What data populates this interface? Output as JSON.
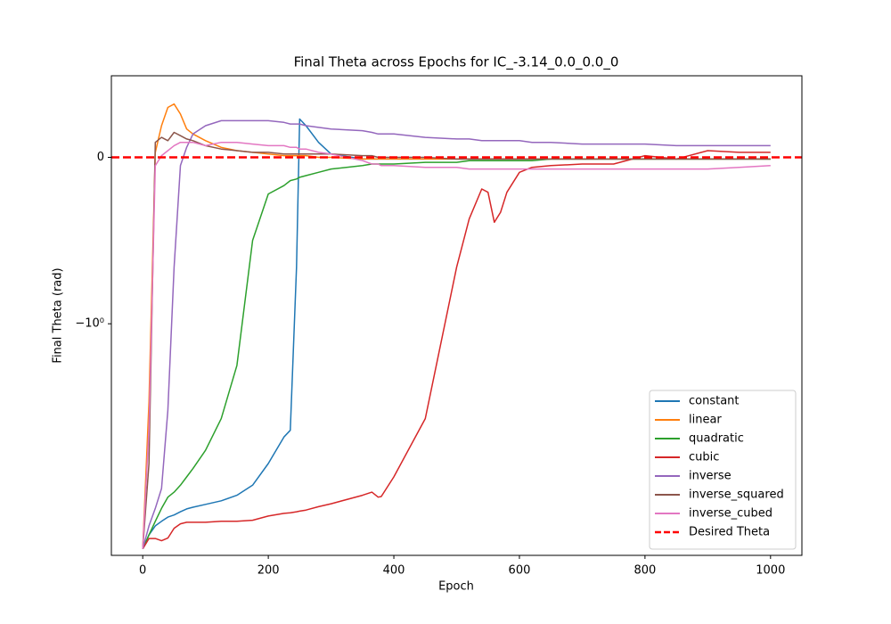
{
  "chart_data": {
    "type": "line",
    "title": "Final Theta across Epochs for IC_-3.14_0.0_0.0_0",
    "x_label": "Epoch",
    "y_label": "Final Theta (rad)",
    "yscale": "symlog",
    "linthresh": 2,
    "xlim": [
      -49.95,
      1049.95
    ],
    "ylim": [
      -3.3,
      0.49
    ],
    "xticks": [
      0,
      200,
      400,
      600,
      800,
      1000
    ],
    "yticks": [
      0,
      {
        "value": -1,
        "label": "−10⁰"
      }
    ],
    "legend": "lower right",
    "x": [
      0,
      10,
      20,
      30,
      40,
      50,
      60,
      70,
      80,
      100,
      125,
      150,
      175,
      200,
      225,
      235,
      245,
      250,
      260,
      280,
      300,
      350,
      365,
      375,
      380,
      400,
      450,
      500,
      520,
      540,
      550,
      560,
      570,
      580,
      600,
      620,
      650,
      700,
      750,
      800,
      850,
      900,
      950,
      1000
    ],
    "series": [
      {
        "name": "constant",
        "color": "#1f77b4",
        "values": [
          -3.14,
          -2.82,
          -2.63,
          -2.54,
          -2.46,
          -2.42,
          -2.36,
          -2.31,
          -2.28,
          -2.23,
          -2.17,
          -2.08,
          -1.97,
          -1.84,
          -1.68,
          -1.64,
          -0.66,
          0.23,
          0.19,
          0.09,
          0.02,
          -0.01,
          -0.01,
          -0.01,
          -0.01,
          -0.01,
          -0.01,
          -0.01,
          -0.01,
          -0.01,
          -0.01,
          -0.01,
          -0.01,
          -0.01,
          -0.01,
          -0.01,
          -0.01,
          -0.01,
          -0.01,
          -0.01,
          -0.01,
          -0.01,
          -0.01,
          -0.01
        ]
      },
      {
        "name": "linear",
        "color": "#ff7f0e",
        "values": [
          -3.14,
          -1.47,
          0.03,
          0.19,
          0.3,
          0.32,
          0.26,
          0.17,
          0.14,
          0.1,
          0.06,
          0.04,
          0.03,
          0.02,
          0.01,
          0.01,
          0.01,
          0.01,
          0.01,
          0.0,
          0.0,
          -0.01,
          -0.01,
          -0.01,
          -0.01,
          -0.01,
          -0.01,
          -0.01,
          -0.01,
          -0.01,
          -0.01,
          -0.01,
          -0.01,
          -0.01,
          -0.01,
          -0.01,
          -0.01,
          -0.01,
          -0.01,
          -0.01,
          -0.01,
          -0.01,
          -0.01,
          -0.01
        ]
      },
      {
        "name": "quadratic",
        "color": "#2ca02c",
        "values": [
          -3.14,
          -2.82,
          -2.54,
          -2.3,
          -2.11,
          -2.03,
          -1.97,
          -1.92,
          -1.87,
          -1.76,
          -1.57,
          -1.25,
          -0.5,
          -0.22,
          -0.17,
          -0.14,
          -0.13,
          -0.12,
          -0.11,
          -0.09,
          -0.07,
          -0.05,
          -0.04,
          -0.04,
          -0.04,
          -0.04,
          -0.03,
          -0.03,
          -0.02,
          -0.02,
          -0.02,
          -0.02,
          -0.02,
          -0.02,
          -0.02,
          -0.02,
          -0.01,
          -0.01,
          -0.01,
          -0.01,
          -0.01,
          -0.01,
          -0.01,
          -0.01
        ]
      },
      {
        "name": "cubic",
        "color": "#d62728",
        "values": [
          -3.14,
          -2.9,
          -2.9,
          -2.95,
          -2.89,
          -2.68,
          -2.59,
          -2.56,
          -2.56,
          -2.56,
          -2.54,
          -2.54,
          -2.52,
          -2.44,
          -2.39,
          -2.38,
          -2.36,
          -2.35,
          -2.33,
          -2.27,
          -2.22,
          -2.08,
          -2.03,
          -2.11,
          -2.1,
          -1.92,
          -1.57,
          -0.66,
          -0.37,
          -0.19,
          -0.21,
          -0.39,
          -0.33,
          -0.21,
          -0.09,
          -0.06,
          -0.05,
          -0.04,
          -0.04,
          0.01,
          -0.01,
          0.04,
          0.03,
          0.03
        ]
      },
      {
        "name": "inverse",
        "color": "#9467bd",
        "values": [
          -3.14,
          -2.63,
          -2.3,
          -1.99,
          -1.52,
          -0.66,
          -0.05,
          0.06,
          0.14,
          0.19,
          0.22,
          0.22,
          0.22,
          0.22,
          0.21,
          0.2,
          0.2,
          0.2,
          0.19,
          0.18,
          0.17,
          0.16,
          0.15,
          0.14,
          0.14,
          0.14,
          0.12,
          0.11,
          0.11,
          0.1,
          0.1,
          0.1,
          0.1,
          0.1,
          0.1,
          0.09,
          0.09,
          0.08,
          0.08,
          0.08,
          0.07,
          0.07,
          0.07,
          0.07
        ]
      },
      {
        "name": "inverse_squared",
        "color": "#8c564b",
        "values": [
          -3.14,
          -1.84,
          0.09,
          0.12,
          0.1,
          0.15,
          0.13,
          0.11,
          0.1,
          0.07,
          0.05,
          0.04,
          0.03,
          0.03,
          0.02,
          0.02,
          0.02,
          0.02,
          0.02,
          0.02,
          0.02,
          0.01,
          0.01,
          0.0,
          0.0,
          0.0,
          0.0,
          -0.01,
          -0.01,
          -0.01,
          -0.01,
          -0.01,
          -0.01,
          -0.01,
          -0.01,
          -0.01,
          -0.01,
          -0.01,
          -0.01,
          -0.01,
          -0.01,
          -0.01,
          -0.01,
          -0.01
        ]
      },
      {
        "name": "inverse_cubed",
        "color": "#e377c2",
        "values": [
          -3.14,
          -1.63,
          -0.05,
          0.01,
          0.04,
          0.07,
          0.09,
          0.09,
          0.09,
          0.07,
          0.09,
          0.09,
          0.08,
          0.07,
          0.07,
          0.06,
          0.06,
          0.05,
          0.05,
          0.03,
          0.02,
          -0.02,
          -0.04,
          -0.04,
          -0.05,
          -0.05,
          -0.06,
          -0.06,
          -0.07,
          -0.07,
          -0.07,
          -0.07,
          -0.07,
          -0.07,
          -0.07,
          -0.07,
          -0.07,
          -0.07,
          -0.07,
          -0.07,
          -0.07,
          -0.07,
          -0.06,
          -0.05
        ]
      }
    ],
    "reference_line": {
      "name": "Desired Theta",
      "value": 0,
      "color": "#ff0000",
      "style": "dashed"
    }
  }
}
